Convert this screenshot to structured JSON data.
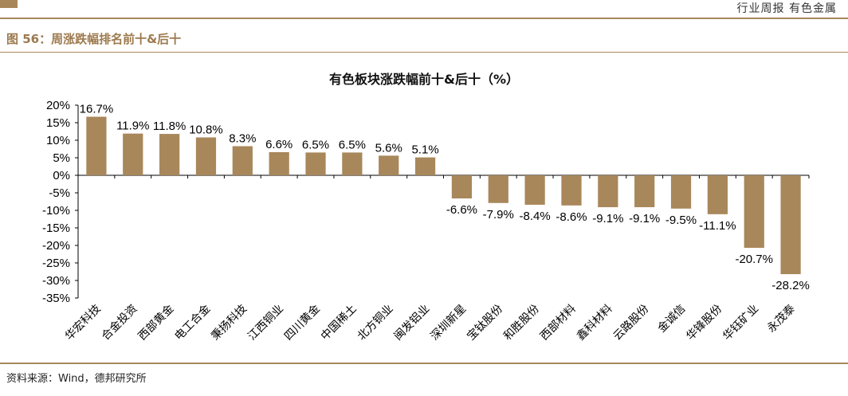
{
  "header": {
    "right_text": "行业周报   有色金属"
  },
  "figure_title": "图 56：周涨跌幅排名前十&后十",
  "source": "资料来源：Wind，德邦研究所",
  "colors": {
    "bar": "#a8875a",
    "accent": "#a8875a",
    "title_accent": "#9c7a4e"
  },
  "chart_data": {
    "type": "bar",
    "title": "有色板块涨跌幅前十&后十（%）",
    "xlabel": "",
    "ylabel": "",
    "ylim": [
      -35,
      20
    ],
    "yticks": [
      20,
      15,
      10,
      5,
      0,
      -5,
      -10,
      -15,
      -20,
      -25,
      -30,
      -35
    ],
    "ytick_labels": [
      "20%",
      "15%",
      "10%",
      "5%",
      "0%",
      "-5%",
      "-10%",
      "-15%",
      "-20%",
      "-25%",
      "-30%",
      "-35%"
    ],
    "grid": false,
    "categories": [
      "华宏科技",
      "合金投资",
      "西部黄金",
      "电工合金",
      "秉扬科技",
      "江西铜业",
      "四川黄金",
      "中国稀土",
      "北方铜业",
      "闽发铝业",
      "深圳新星",
      "宝钛股份",
      "和胜股份",
      "西部材料",
      "鑫科材料",
      "云路股份",
      "金诚信",
      "华锋股份",
      "华钰矿业",
      "永茂泰"
    ],
    "values": [
      16.7,
      11.9,
      11.8,
      10.8,
      8.3,
      6.6,
      6.5,
      6.5,
      5.6,
      5.1,
      -6.6,
      -7.9,
      -8.4,
      -8.6,
      -9.1,
      -9.1,
      -9.5,
      -11.1,
      -20.7,
      -28.2
    ],
    "data_labels": [
      "16.7%",
      "11.9%",
      "11.8%",
      "10.8%",
      "8.3%",
      "6.6%",
      "6.5%",
      "6.5%",
      "5.6%",
      "5.1%",
      "-6.6%",
      "-7.9%",
      "-8.4%",
      "-8.6%",
      "-9.1%",
      "-9.1%",
      "-9.5%",
      "-11.1%",
      "-20.7%",
      "-28.2%"
    ]
  }
}
